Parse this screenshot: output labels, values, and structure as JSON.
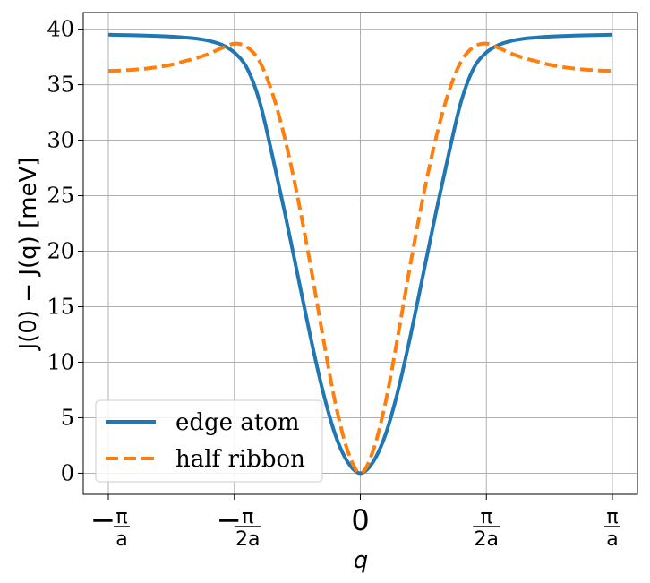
{
  "chart_data": {
    "type": "line",
    "xlabel": "q",
    "ylabel": "J(0) − J(q) [meV]",
    "xlim": [
      -1.0,
      1.0
    ],
    "ylim": [
      -1.9,
      41.5
    ],
    "x_unit": "π/a",
    "grid": true,
    "legend_position": "lower-left",
    "x_ticks": [
      {
        "value": -1.0,
        "sign": "−",
        "numerator": "π",
        "denominator": "a"
      },
      {
        "value": -0.5,
        "sign": "−",
        "numerator": "π",
        "denominator": "2a"
      },
      {
        "value": 0.0,
        "sign": "",
        "numerator": "0",
        "denominator": ""
      },
      {
        "value": 0.5,
        "sign": "",
        "numerator": "π",
        "denominator": "2a"
      },
      {
        "value": 1.0,
        "sign": "",
        "numerator": "π",
        "denominator": "a"
      }
    ],
    "y_ticks": [
      0,
      5,
      10,
      15,
      20,
      25,
      30,
      35,
      40
    ],
    "series": [
      {
        "name": "edge atom",
        "color": "#1f77b4",
        "style": "solid",
        "x": [
          0.0,
          0.05,
          0.1,
          0.15,
          0.2,
          0.25,
          0.3,
          0.35,
          0.4,
          0.45,
          0.5,
          0.55,
          0.6,
          0.65,
          0.7,
          0.75,
          0.8,
          0.85,
          0.9,
          0.95,
          1.0
        ],
        "y": [
          0.0,
          1.0,
          3.5,
          7.5,
          12.5,
          18.0,
          23.5,
          28.7,
          33.5,
          36.5,
          37.9,
          38.6,
          38.95,
          39.15,
          39.25,
          39.33,
          39.38,
          39.42,
          39.45,
          39.47,
          39.5
        ]
      },
      {
        "name": "half ribbon",
        "color": "#ff7f0e",
        "style": "dashed",
        "x": [
          0.0,
          0.05,
          0.1,
          0.15,
          0.2,
          0.25,
          0.3,
          0.35,
          0.4,
          0.45,
          0.5,
          0.55,
          0.6,
          0.65,
          0.7,
          0.75,
          0.8,
          0.85,
          0.9,
          0.95,
          1.0
        ],
        "y": [
          0.0,
          2.0,
          6.4,
          12.5,
          19.0,
          25.0,
          30.2,
          34.3,
          37.1,
          38.4,
          38.7,
          38.3,
          37.8,
          37.4,
          37.1,
          36.8,
          36.6,
          36.45,
          36.35,
          36.28,
          36.25
        ]
      }
    ]
  }
}
